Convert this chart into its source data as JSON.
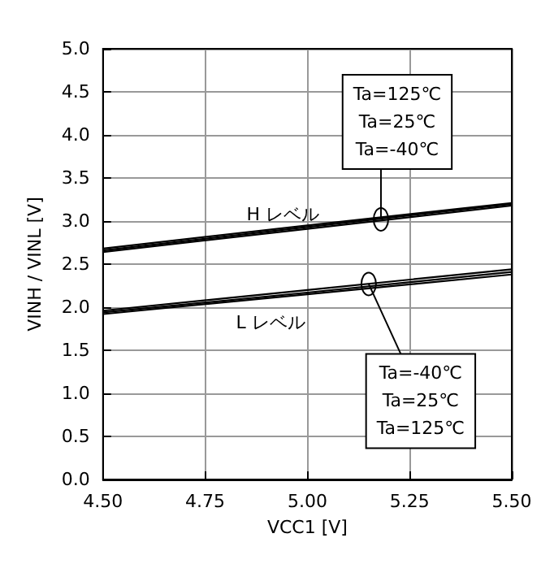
{
  "chart_data": {
    "type": "line",
    "xlabel": "VCC1 [V]",
    "ylabel": "VINH / VINL [V]",
    "x": [
      4.5,
      5.0,
      5.5
    ],
    "series": [
      {
        "color": "#000000",
        "values": [
          2.68,
          2.95,
          3.21
        ]
      },
      {
        "color": "#000000",
        "values": [
          2.66,
          2.93,
          3.2
        ]
      },
      {
        "color": "#000000",
        "values": [
          2.64,
          2.91,
          3.18
        ]
      },
      {
        "color": "#000000",
        "values": [
          1.96,
          2.2,
          2.44
        ]
      },
      {
        "color": "#000000",
        "values": [
          1.94,
          2.17,
          2.41
        ]
      },
      {
        "color": "#000000",
        "values": [
          1.92,
          2.15,
          2.38
        ]
      }
    ],
    "annotations": [
      "H レベル",
      "L レベル",
      {
        "text": "Ta=125℃\nTa=25℃\nTa=-40℃",
        "x": 5.18,
        "y": 3.02
      },
      {
        "text": "Ta=-40℃\nTa=25℃\nTa=125℃",
        "x": 5.15,
        "y": 2.27
      }
    ],
    "xlim": [
      4.5,
      5.5
    ],
    "xticks": [
      {
        "value": 4.5,
        "label": "4.50"
      },
      {
        "value": 4.75,
        "label": "4.75"
      },
      {
        "value": 5.0,
        "label": "5.00"
      },
      {
        "value": 5.25,
        "label": "5.25"
      },
      {
        "value": 5.5,
        "label": "5.50"
      }
    ],
    "ylim": [
      0,
      5
    ],
    "yticks": [
      {
        "value": 0,
        "label": "0.0"
      },
      {
        "value": 0.5,
        "label": "0.5"
      },
      {
        "value": 1,
        "label": "1.0"
      },
      {
        "value": 1.5,
        "label": "1.5"
      },
      {
        "value": 2,
        "label": "2.0"
      },
      {
        "value": 2.5,
        "label": "2.5"
      },
      {
        "value": 3,
        "label": "3.0"
      },
      {
        "value": 3.5,
        "label": "3.5"
      },
      {
        "value": 4,
        "label": "4.0"
      },
      {
        "value": 4.5,
        "label": "4.5"
      },
      {
        "value": 5,
        "label": "5.0"
      }
    ],
    "grid": true,
    "marker": "none",
    "line_style": "solid"
  }
}
